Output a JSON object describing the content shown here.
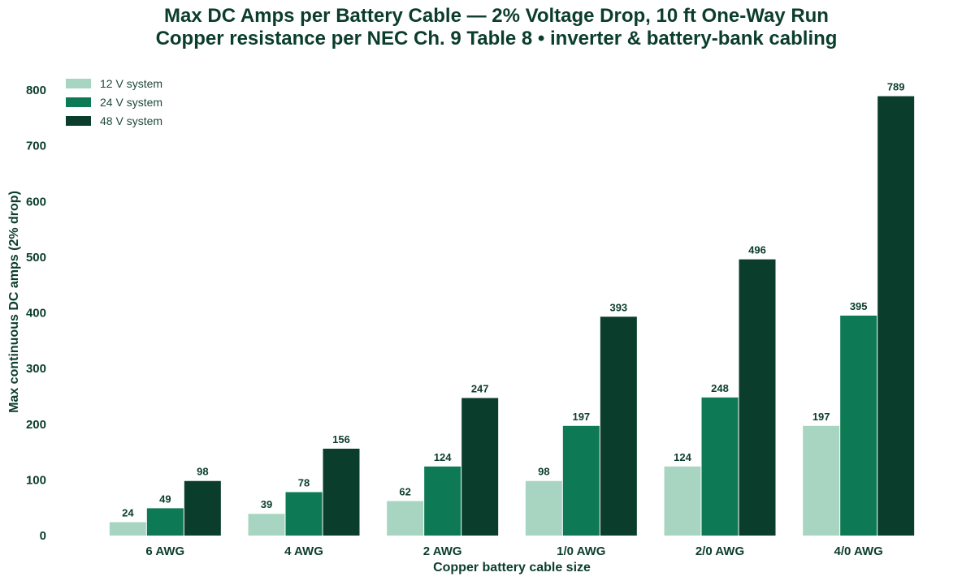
{
  "chart_data": {
    "type": "bar",
    "title": "Max DC Amps per Battery Cable — 2% Voltage Drop, 10 ft One-Way Run",
    "subtitle": "Copper resistance per NEC Ch. 9 Table 8  •  inverter & battery-bank cabling",
    "xlabel": "Copper battery cable size",
    "ylabel": "Max continuous DC amps (2% drop)",
    "categories": [
      "6 AWG",
      "4 AWG",
      "2 AWG",
      "1/0 AWG",
      "2/0 AWG",
      "4/0 AWG"
    ],
    "series": [
      {
        "name": "12 V system",
        "color": "#a8d5c2",
        "values": [
          24,
          39,
          62,
          98,
          124,
          197
        ]
      },
      {
        "name": "24 V system",
        "color": "#0e7a55",
        "values": [
          49,
          78,
          124,
          197,
          248,
          395
        ]
      },
      {
        "name": "48 V system",
        "color": "#0b3d2c",
        "values": [
          98,
          156,
          247,
          393,
          496,
          789
        ]
      }
    ],
    "ylim": [
      0,
      800
    ],
    "yticks": [
      0,
      100,
      200,
      300,
      400,
      500,
      600,
      700,
      800
    ],
    "grid": false,
    "legend": "top-left",
    "data_labels": true
  }
}
